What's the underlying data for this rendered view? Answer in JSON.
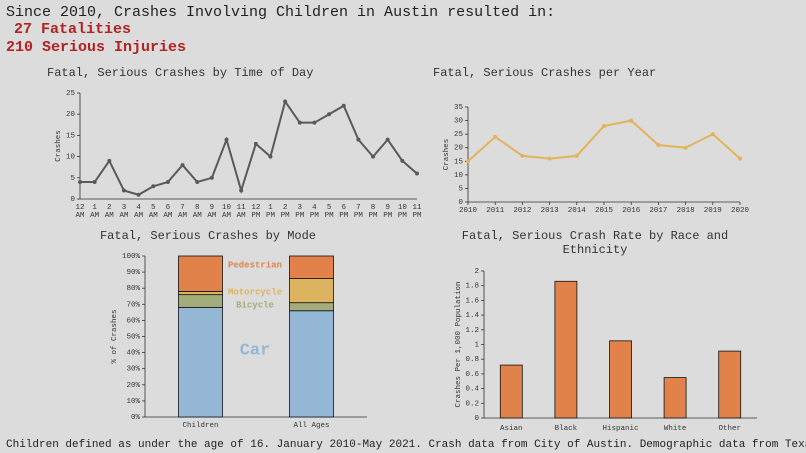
{
  "header": {
    "title": "Since 2010, Crashes Involving Children in Austin resulted in:",
    "lines": [
      "27 Fatalities",
      "210 Serious Injuries"
    ]
  },
  "chart_data": [
    {
      "type": "line",
      "title": "Fatal, Serious Crashes by Time of Day",
      "ylabel": "Crashes",
      "color": "#595959",
      "categories": [
        "12 AM",
        "1 AM",
        "2 AM",
        "3 AM",
        "4 AM",
        "5 AM",
        "6 AM",
        "7 AM",
        "8 AM",
        "9 AM",
        "10 AM",
        "11 AM",
        "12 PM",
        "1 PM",
        "2 PM",
        "3 PM",
        "4 PM",
        "5 PM",
        "6 PM",
        "7 PM",
        "8 PM",
        "9 PM",
        "10 PM",
        "11 PM"
      ],
      "values": [
        4,
        4,
        9,
        2,
        1,
        3,
        4,
        8,
        4,
        5,
        14,
        2,
        13,
        10,
        23,
        18,
        18,
        20,
        22,
        14,
        10,
        14,
        9,
        6
      ],
      "ylim": [
        0,
        25
      ],
      "yticks": [
        0,
        5,
        10,
        15,
        20,
        25
      ]
    },
    {
      "type": "line",
      "title": "Fatal, Serious Crashes per Year",
      "ylabel": "Crashes",
      "color": "#e3b35a",
      "x": [
        2010,
        2011,
        2012,
        2013,
        2014,
        2015,
        2016,
        2017,
        2018,
        2019,
        2020
      ],
      "values": [
        15,
        24,
        17,
        16,
        17,
        28,
        30,
        21,
        20,
        25,
        16
      ],
      "xlim": [
        2010,
        2020
      ],
      "xticks": [
        2010,
        2011,
        2012,
        2013,
        2014,
        2015,
        2016,
        2017,
        2018,
        2019,
        2020
      ],
      "ylim": [
        0,
        35
      ],
      "yticks": [
        0,
        5,
        10,
        15,
        20,
        25,
        30,
        35
      ]
    },
    {
      "type": "stacked-bar",
      "title": "Fatal, Serious Crashes by Mode",
      "ylabel": "% of Crashes",
      "categories": [
        "Children",
        "All Ages"
      ],
      "series": [
        {
          "name": "Car",
          "color": "#93b7d5",
          "values": [
            68,
            66
          ]
        },
        {
          "name": "Bicycle",
          "color": "#a3ad7b",
          "values": [
            8,
            5
          ]
        },
        {
          "name": "Motorcycle",
          "color": "#dcb35e",
          "values": [
            2,
            15
          ]
        },
        {
          "name": "Pedestrian",
          "color": "#e0824a",
          "values": [
            22,
            14
          ]
        }
      ],
      "ylim": [
        0,
        100
      ],
      "yticks": [
        {
          "value": 0,
          "label": "0%"
        },
        {
          "value": 10,
          "label": "10%"
        },
        {
          "value": 20,
          "label": "20%"
        },
        {
          "value": 30,
          "label": "30%"
        },
        {
          "value": 40,
          "label": "40%"
        },
        {
          "value": 50,
          "label": "50%"
        },
        {
          "value": 60,
          "label": "60%"
        },
        {
          "value": 70,
          "label": "70%"
        },
        {
          "value": 80,
          "label": "80%"
        },
        {
          "value": 90,
          "label": "90%"
        },
        {
          "value": 100,
          "label": "100%"
        }
      ]
    },
    {
      "type": "bar",
      "title": "Fatal, Serious Crash Rate by Race and Ethnicity",
      "ylabel": "Crashes Per 1,000 Population",
      "color": "#e0824a",
      "categories": [
        "Asian",
        "Black",
        "Hispanic",
        "White",
        "Other"
      ],
      "values": [
        0.72,
        1.86,
        1.05,
        0.55,
        0.91
      ],
      "ylim": [
        0,
        2
      ],
      "yticks": [
        0,
        0.2,
        0.4,
        0.6,
        0.8,
        1,
        1.2,
        1.4,
        1.6,
        1.8,
        2
      ]
    }
  ],
  "footer": "Children defined as under the age of 16. January 2010-May 2021. Crash data from City of Austin. Demographic data from Texas Demographic Center."
}
